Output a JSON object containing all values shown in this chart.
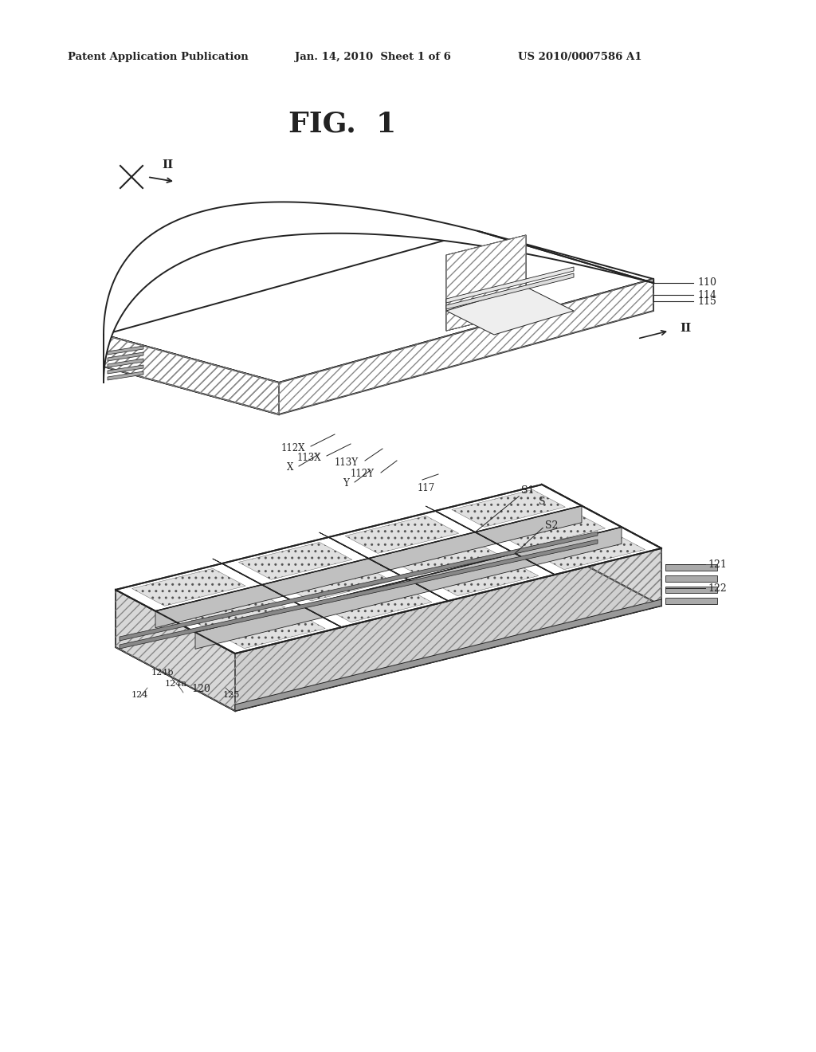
{
  "background_color": "#ffffff",
  "header_left": "Patent Application Publication",
  "header_mid": "Jan. 14, 2010  Sheet 1 of 6",
  "header_right": "US 2010/0007586 A1",
  "fig_title": "FIG.  1"
}
